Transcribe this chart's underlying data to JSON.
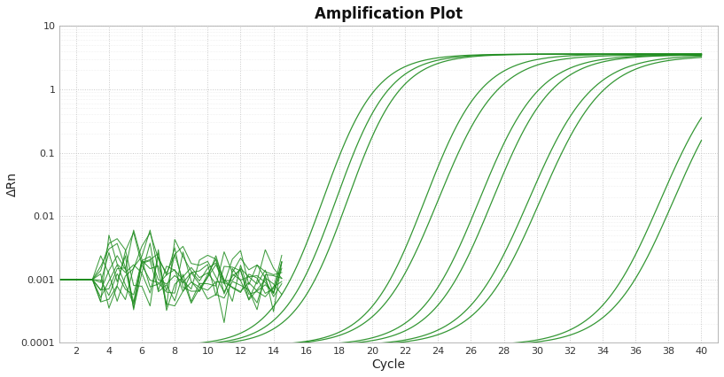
{
  "title": "Amplification Plot",
  "xlabel": "Cycle",
  "ylabel": "ΔRn",
  "line_color": "#1e8c1e",
  "background_color": "#ffffff",
  "plot_background": "#ffffff",
  "xmin": 1,
  "xmax": 41,
  "ymin": 0.0001,
  "ymax": 10,
  "xticks": [
    2,
    4,
    6,
    8,
    10,
    12,
    14,
    16,
    18,
    20,
    22,
    24,
    26,
    28,
    30,
    32,
    34,
    36,
    38,
    40
  ],
  "sigmoid_curves": [
    {
      "ct": 17.0,
      "plateau": 3.6,
      "slope": 0.62
    },
    {
      "ct": 17.8,
      "plateau": 3.6,
      "slope": 0.62
    },
    {
      "ct": 18.5,
      "plateau": 3.6,
      "slope": 0.62
    },
    {
      "ct": 23.2,
      "plateau": 3.6,
      "slope": 0.58
    },
    {
      "ct": 24.0,
      "plateau": 3.5,
      "slope": 0.55
    },
    {
      "ct": 26.5,
      "plateau": 3.5,
      "slope": 0.55
    },
    {
      "ct": 27.3,
      "plateau": 3.5,
      "slope": 0.55
    },
    {
      "ct": 29.5,
      "plateau": 3.5,
      "slope": 0.52
    },
    {
      "ct": 30.2,
      "plateau": 3.4,
      "slope": 0.52
    },
    {
      "ct": 37.5,
      "plateau": 3.4,
      "slope": 0.52
    },
    {
      "ct": 38.3,
      "plateau": 3.4,
      "slope": 0.52
    }
  ],
  "noise_seed": 77,
  "noise_num_curves": 11,
  "noise_x_max": 14.5
}
